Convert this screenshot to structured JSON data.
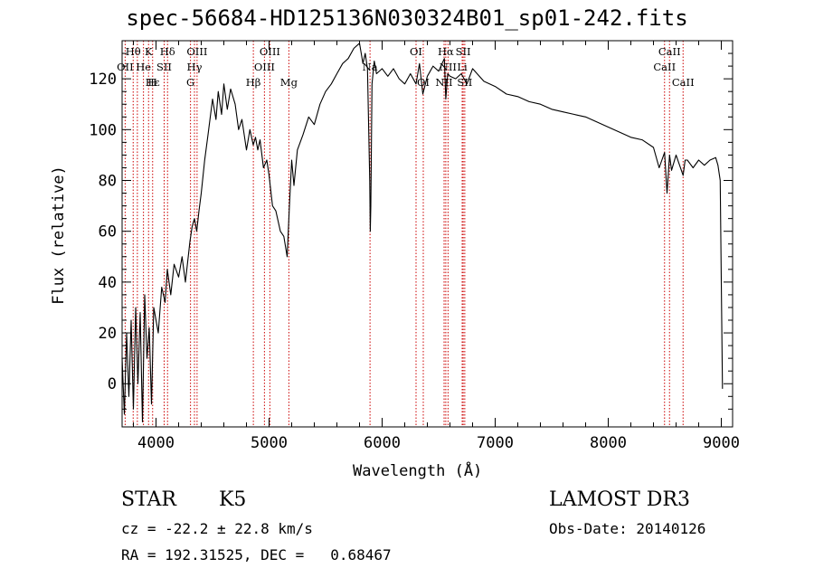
{
  "chart_data": {
    "type": "line",
    "title": "spec-56684-HD125136N030324B01_sp01-242.fits",
    "xlabel": "Wavelength (Å)",
    "ylabel": "Flux (relative)",
    "xlim": [
      3700,
      9100
    ],
    "ylim": [
      -17,
      135
    ],
    "x_ticks": [
      4000,
      5000,
      6000,
      7000,
      8000,
      9000
    ],
    "y_ticks": [
      0,
      20,
      40,
      60,
      80,
      100,
      120
    ],
    "series": [
      {
        "x": [
          3700,
          3720,
          3740,
          3760,
          3780,
          3800,
          3820,
          3840,
          3860,
          3880,
          3900,
          3920,
          3940,
          3960,
          3980,
          4000,
          4020,
          4050,
          4080,
          4100,
          4130,
          4160,
          4200,
          4230,
          4260,
          4300,
          4320,
          4340,
          4360,
          4380,
          4400,
          4430,
          4460,
          4500,
          4530,
          4550,
          4580,
          4600,
          4630,
          4660,
          4700,
          4730,
          4760,
          4800,
          4830,
          4860,
          4880,
          4900,
          4920,
          4950,
          4980,
          5000,
          5030,
          5060,
          5100,
          5130,
          5160,
          5180,
          5200,
          5220,
          5250,
          5300,
          5350,
          5400,
          5450,
          5500,
          5550,
          5600,
          5650,
          5700,
          5750,
          5800,
          5830,
          5850,
          5870,
          5890,
          5895,
          5900,
          5910,
          5930,
          5950,
          6000,
          6050,
          6100,
          6150,
          6200,
          6250,
          6300,
          6330,
          6360,
          6400,
          6450,
          6500,
          6550,
          6563,
          6580,
          6600,
          6650,
          6700,
          6750,
          6800,
          6900,
          7000,
          7100,
          7200,
          7300,
          7400,
          7500,
          7600,
          7700,
          7800,
          7900,
          8000,
          8100,
          8200,
          8300,
          8400,
          8450,
          8498,
          8520,
          8542,
          8560,
          8600,
          8662,
          8680,
          8700,
          8750,
          8800,
          8850,
          8900,
          8950,
          8970,
          8990,
          9000,
          9010
        ],
        "y": [
          10,
          -12,
          20,
          -5,
          25,
          -10,
          30,
          0,
          28,
          -15,
          35,
          10,
          22,
          -8,
          30,
          25,
          20,
          38,
          32,
          45,
          35,
          47,
          42,
          50,
          40,
          56,
          62,
          65,
          60,
          68,
          75,
          88,
          98,
          112,
          104,
          115,
          106,
          118,
          108,
          116,
          110,
          100,
          104,
          92,
          100,
          94,
          97,
          92,
          96,
          85,
          88,
          82,
          70,
          68,
          60,
          58,
          50,
          70,
          88,
          78,
          92,
          98,
          105,
          102,
          110,
          115,
          118,
          122,
          126,
          128,
          132,
          134,
          126,
          130,
          124,
          80,
          60,
          70,
          118,
          127,
          122,
          124,
          121,
          124,
          120,
          118,
          122,
          118,
          126,
          114,
          121,
          125,
          123,
          128,
          112,
          122,
          121,
          120,
          122,
          118,
          124,
          119,
          117,
          114,
          113,
          111,
          110,
          108,
          107,
          106,
          105,
          103,
          101,
          99,
          97,
          96,
          93,
          85,
          91,
          75,
          90,
          84,
          90,
          82,
          88,
          88,
          85,
          88,
          86,
          88,
          89,
          86,
          80,
          40,
          -2
        ]
      }
    ],
    "annotations": {
      "line_labels": [
        {
          "text": "Hθ",
          "wavelength": 3798,
          "row": 1
        },
        {
          "text": "K",
          "wavelength": 3934,
          "row": 1
        },
        {
          "text": "Hδ",
          "wavelength": 4102,
          "row": 1
        },
        {
          "text": "OIII",
          "wavelength": 4363,
          "row": 1
        },
        {
          "text": "OIII",
          "wavelength": 5007,
          "row": 1
        },
        {
          "text": "OI",
          "wavelength": 6300,
          "row": 1
        },
        {
          "text": "Hα",
          "wavelength": 6563,
          "row": 1
        },
        {
          "text": "SII",
          "wavelength": 6717,
          "row": 1
        },
        {
          "text": "CaII",
          "wavelength": 8542,
          "row": 1
        },
        {
          "text": "OII",
          "wavelength": 3727,
          "row": 2
        },
        {
          "text": "He",
          "wavelength": 3889,
          "row": 2
        },
        {
          "text": "SII",
          "wavelength": 4072,
          "row": 2
        },
        {
          "text": "Hγ",
          "wavelength": 4340,
          "row": 2
        },
        {
          "text": "OIII",
          "wavelength": 4959,
          "row": 2
        },
        {
          "text": "Na",
          "wavelength": 5893,
          "row": 2
        },
        {
          "text": "NII",
          "wavelength": 6583,
          "row": 2
        },
        {
          "text": "Li",
          "wavelength": 6708,
          "row": 2
        },
        {
          "text": "CaII",
          "wavelength": 8498,
          "row": 2
        },
        {
          "text": "Hε",
          "wavelength": 3970,
          "row": 3
        },
        {
          "text": "H",
          "wavelength": 3968,
          "row": 3
        },
        {
          "text": "G",
          "wavelength": 4305,
          "row": 3
        },
        {
          "text": "Hβ",
          "wavelength": 4861,
          "row": 3
        },
        {
          "text": "Mg",
          "wavelength": 5175,
          "row": 3
        },
        {
          "text": "OI",
          "wavelength": 6364,
          "row": 3
        },
        {
          "text": "NII",
          "wavelength": 6548,
          "row": 3
        },
        {
          "text": "SII",
          "wavelength": 6731,
          "row": 3
        },
        {
          "text": "CaII",
          "wavelength": 8662,
          "row": 3
        }
      ],
      "line_marker_wavelengths": [
        3727,
        3798,
        3835,
        3889,
        3934,
        3970,
        4072,
        4102,
        4305,
        4340,
        4363,
        4861,
        4959,
        5007,
        5175,
        5893,
        6300,
        6364,
        6548,
        6563,
        6583,
        6708,
        6717,
        6731,
        8498,
        8542,
        8662
      ],
      "marker_color": "#cc0000"
    }
  },
  "info": {
    "class_label": "STAR",
    "subclass": "K5",
    "survey": "LAMOST DR3",
    "cz": "cz = -22.2 ± 22.8 km/s",
    "obs_date": "Obs-Date: 20140126",
    "coords": "RA = 192.31525, DEC =   0.68467"
  }
}
